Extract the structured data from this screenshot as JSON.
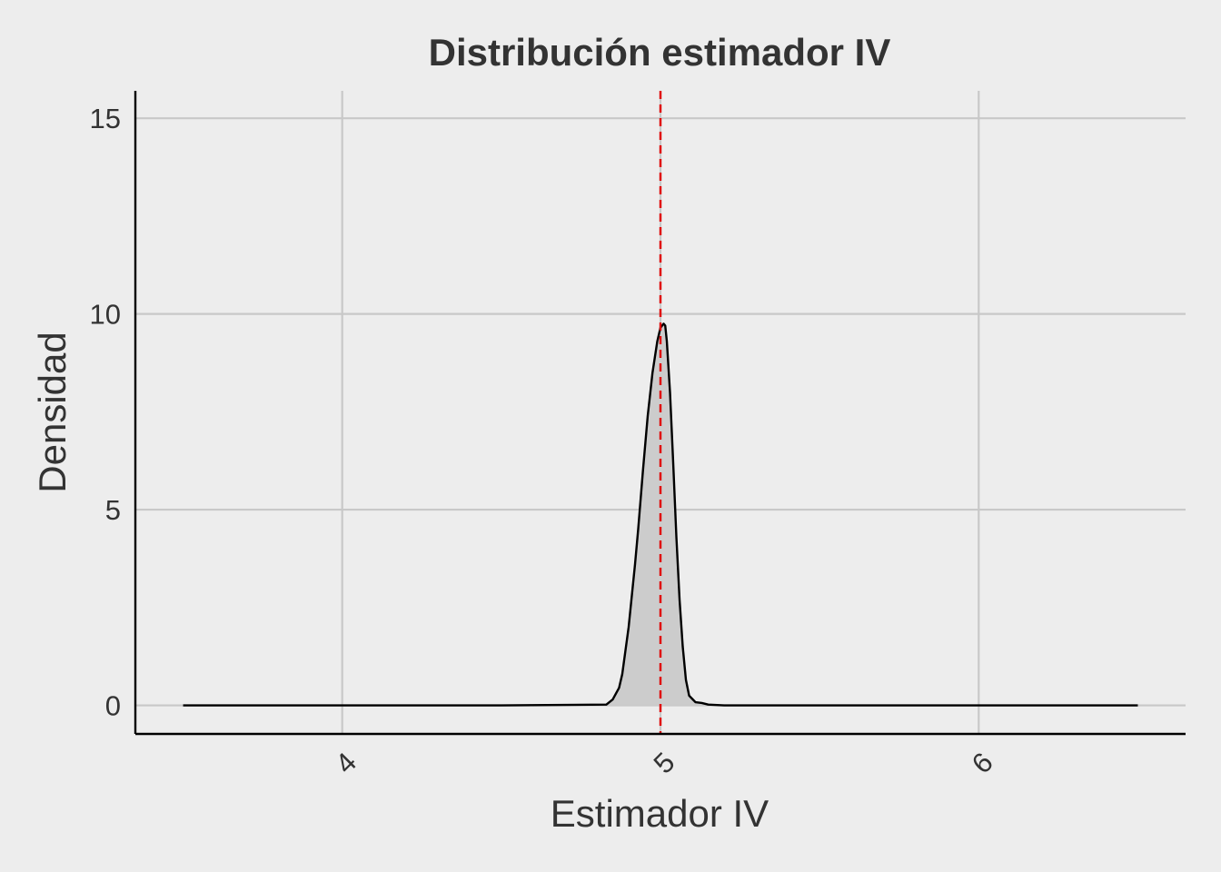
{
  "chart_data": {
    "type": "area",
    "title": "Distribución estimador IV",
    "xlabel": "Estimador IV",
    "ylabel": "Densidad",
    "xlim": [
      3.35,
      6.65
    ],
    "ylim": [
      -0.73,
      15.7
    ],
    "x_ticks": [
      4,
      5,
      6
    ],
    "y_ticks": [
      0,
      5,
      10,
      15
    ],
    "x_tick_labels": [
      "4",
      "5",
      "6"
    ],
    "y_tick_labels": [
      "0",
      "5",
      "10",
      "15"
    ],
    "grid": true,
    "x_tick_rotation": -45,
    "reference_line": {
      "x": 5.0,
      "style": "dashed",
      "color": "#e00000"
    },
    "colors": {
      "fill": "#cccccc",
      "line": "#000000",
      "grid": "#c8c8c8",
      "background": "#ededed"
    },
    "series": [
      {
        "x": [
          3.5,
          4.5,
          4.83,
          4.85,
          4.87,
          4.88,
          4.9,
          4.92,
          4.93,
          4.945,
          4.96,
          4.975,
          4.99,
          5.0,
          5.01,
          5.015,
          5.02,
          5.03,
          5.04,
          5.05,
          5.06,
          5.07,
          5.08,
          5.09,
          5.11,
          5.13,
          5.15,
          5.2,
          6.0,
          6.5
        ],
        "y": [
          0,
          0,
          0.02,
          0.15,
          0.45,
          0.8,
          2.0,
          3.6,
          4.5,
          6.0,
          7.4,
          8.5,
          9.3,
          9.65,
          9.75,
          9.7,
          9.3,
          8.0,
          6.2,
          4.3,
          2.7,
          1.5,
          0.65,
          0.25,
          0.08,
          0.06,
          0.02,
          0.0,
          0,
          0
        ]
      }
    ]
  }
}
